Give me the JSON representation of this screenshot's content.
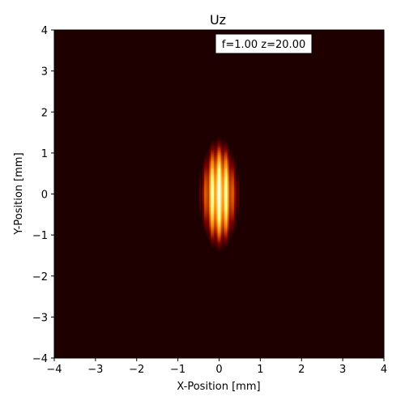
{
  "chart_data": {
    "type": "heatmap",
    "title": "Uz",
    "xlabel": "X-Position [mm]",
    "ylabel": "Y-Position [mm]",
    "xlim": [
      -4,
      4
    ],
    "ylim": [
      -4,
      4
    ],
    "xticks": [
      -4,
      -3,
      -2,
      -1,
      0,
      1,
      2,
      3,
      4
    ],
    "yticks": [
      -4,
      -3,
      -2,
      -1,
      0,
      1,
      2,
      3,
      4
    ],
    "annotation": "f=1.00 z=20.00",
    "colormap": "afmhot",
    "grid": false,
    "field": {
      "center_x": 0.0,
      "center_y": 0.0,
      "x_extent": 0.5,
      "y_extent": 1.5,
      "side_lobes_x": [
        -0.45,
        0.45
      ],
      "side_lobe_y_extent": 0.7
    }
  }
}
